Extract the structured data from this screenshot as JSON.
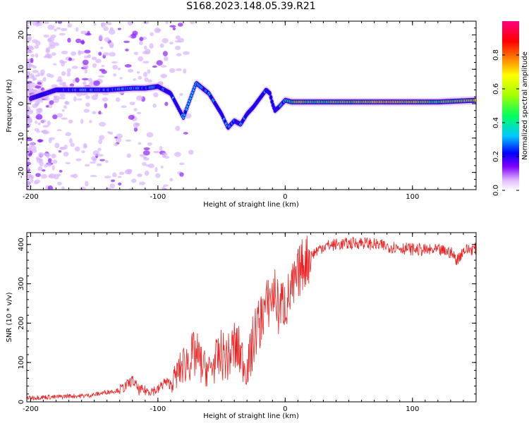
{
  "figure": {
    "title": "S168.2023.148.05.39.R21"
  },
  "chart_data": [
    {
      "type": "heatmap",
      "xlabel": "Height of straight line (km)",
      "ylabel": "Frequency (Hz)",
      "xlim": [
        -203,
        150
      ],
      "ylim": [
        -25,
        24
      ],
      "xticks": [
        -200,
        -100,
        0,
        100
      ],
      "yticks": [
        -20,
        -10,
        0,
        10,
        20
      ],
      "colorbar": {
        "label": "Normalized spectral amplitude",
        "range": [
          0,
          1
        ],
        "ticks": [
          "0.0",
          "0.2",
          "0.4",
          "0.6",
          "0.8"
        ],
        "colormap": [
          "#ffffff",
          "#e8c8ff",
          "#8000ff",
          "#0000ff",
          "#00c8ff",
          "#00ff60",
          "#a0ff00",
          "#ffff00",
          "#ff8000",
          "#ff0000",
          "#ff0080"
        ]
      },
      "ridge": {
        "description_free": true,
        "x": [
          -200,
          -180,
          -160,
          -140,
          -120,
          -110,
          -100,
          -90,
          -80,
          -70,
          -60,
          -50,
          -45,
          -40,
          -35,
          -30,
          -25,
          -20,
          -15,
          -12,
          -10,
          -8,
          -5,
          0,
          5,
          10,
          20,
          40,
          60,
          80,
          100,
          120,
          150
        ],
        "y": [
          1.5,
          4,
          4,
          4,
          4.5,
          4.5,
          5,
          3,
          -4,
          6,
          3,
          -3,
          -7,
          -5,
          -6,
          -3,
          -1,
          1.5,
          4,
          3,
          0,
          -2,
          -1,
          1,
          0.5,
          0.5,
          0.5,
          0.5,
          0.5,
          0.5,
          0.5,
          0.5,
          1
        ],
        "amplitude": [
          0.25,
          0.3,
          0.35,
          0.35,
          0.35,
          0.35,
          0.35,
          0.3,
          0.35,
          0.4,
          0.35,
          0.3,
          0.4,
          0.35,
          0.35,
          0.3,
          0.3,
          0.3,
          0.35,
          0.3,
          0.3,
          0.3,
          0.3,
          0.45,
          0.55,
          0.6,
          0.55,
          0.55,
          0.6,
          0.7,
          0.6,
          0.55,
          0.6
        ]
      }
    },
    {
      "type": "line",
      "xlabel": "Height of straight line (km)",
      "ylabel": "SNR (10 * v/v)",
      "xlim": [
        -203,
        150
      ],
      "ylim": [
        0,
        430
      ],
      "xticks": [
        -200,
        -100,
        0,
        100
      ],
      "yticks": [
        0,
        100,
        200,
        300,
        400
      ],
      "color": "#ee2222",
      "series": [
        {
          "x": [
            -203,
            -190,
            -180,
            -170,
            -160,
            -150,
            -140,
            -130,
            -125,
            -120,
            -115,
            -110,
            -100,
            -95,
            -90,
            -85,
            -80,
            -75,
            -70,
            -65,
            -60,
            -55,
            -50,
            -45,
            -40,
            -35,
            -30,
            -25,
            -22,
            -20,
            -18,
            -15,
            -12,
            -10,
            -8,
            -5,
            -3,
            0,
            2,
            5,
            8,
            10,
            12,
            15,
            20,
            25,
            30,
            40,
            50,
            60,
            70,
            80,
            90,
            100,
            110,
            120,
            130,
            135,
            140,
            150
          ],
          "y": [
            10,
            12,
            12,
            15,
            15,
            18,
            25,
            30,
            40,
            55,
            30,
            28,
            30,
            50,
            45,
            70,
            95,
            110,
            120,
            90,
            80,
            100,
            120,
            110,
            140,
            120,
            80,
            150,
            200,
            190,
            230,
            240,
            260,
            270,
            280,
            230,
            250,
            250,
            260,
            280,
            300,
            320,
            340,
            355,
            370,
            385,
            395,
            400,
            402,
            405,
            400,
            395,
            392,
            388,
            385,
            385,
            380,
            360,
            385,
            390
          ]
        }
      ]
    }
  ]
}
